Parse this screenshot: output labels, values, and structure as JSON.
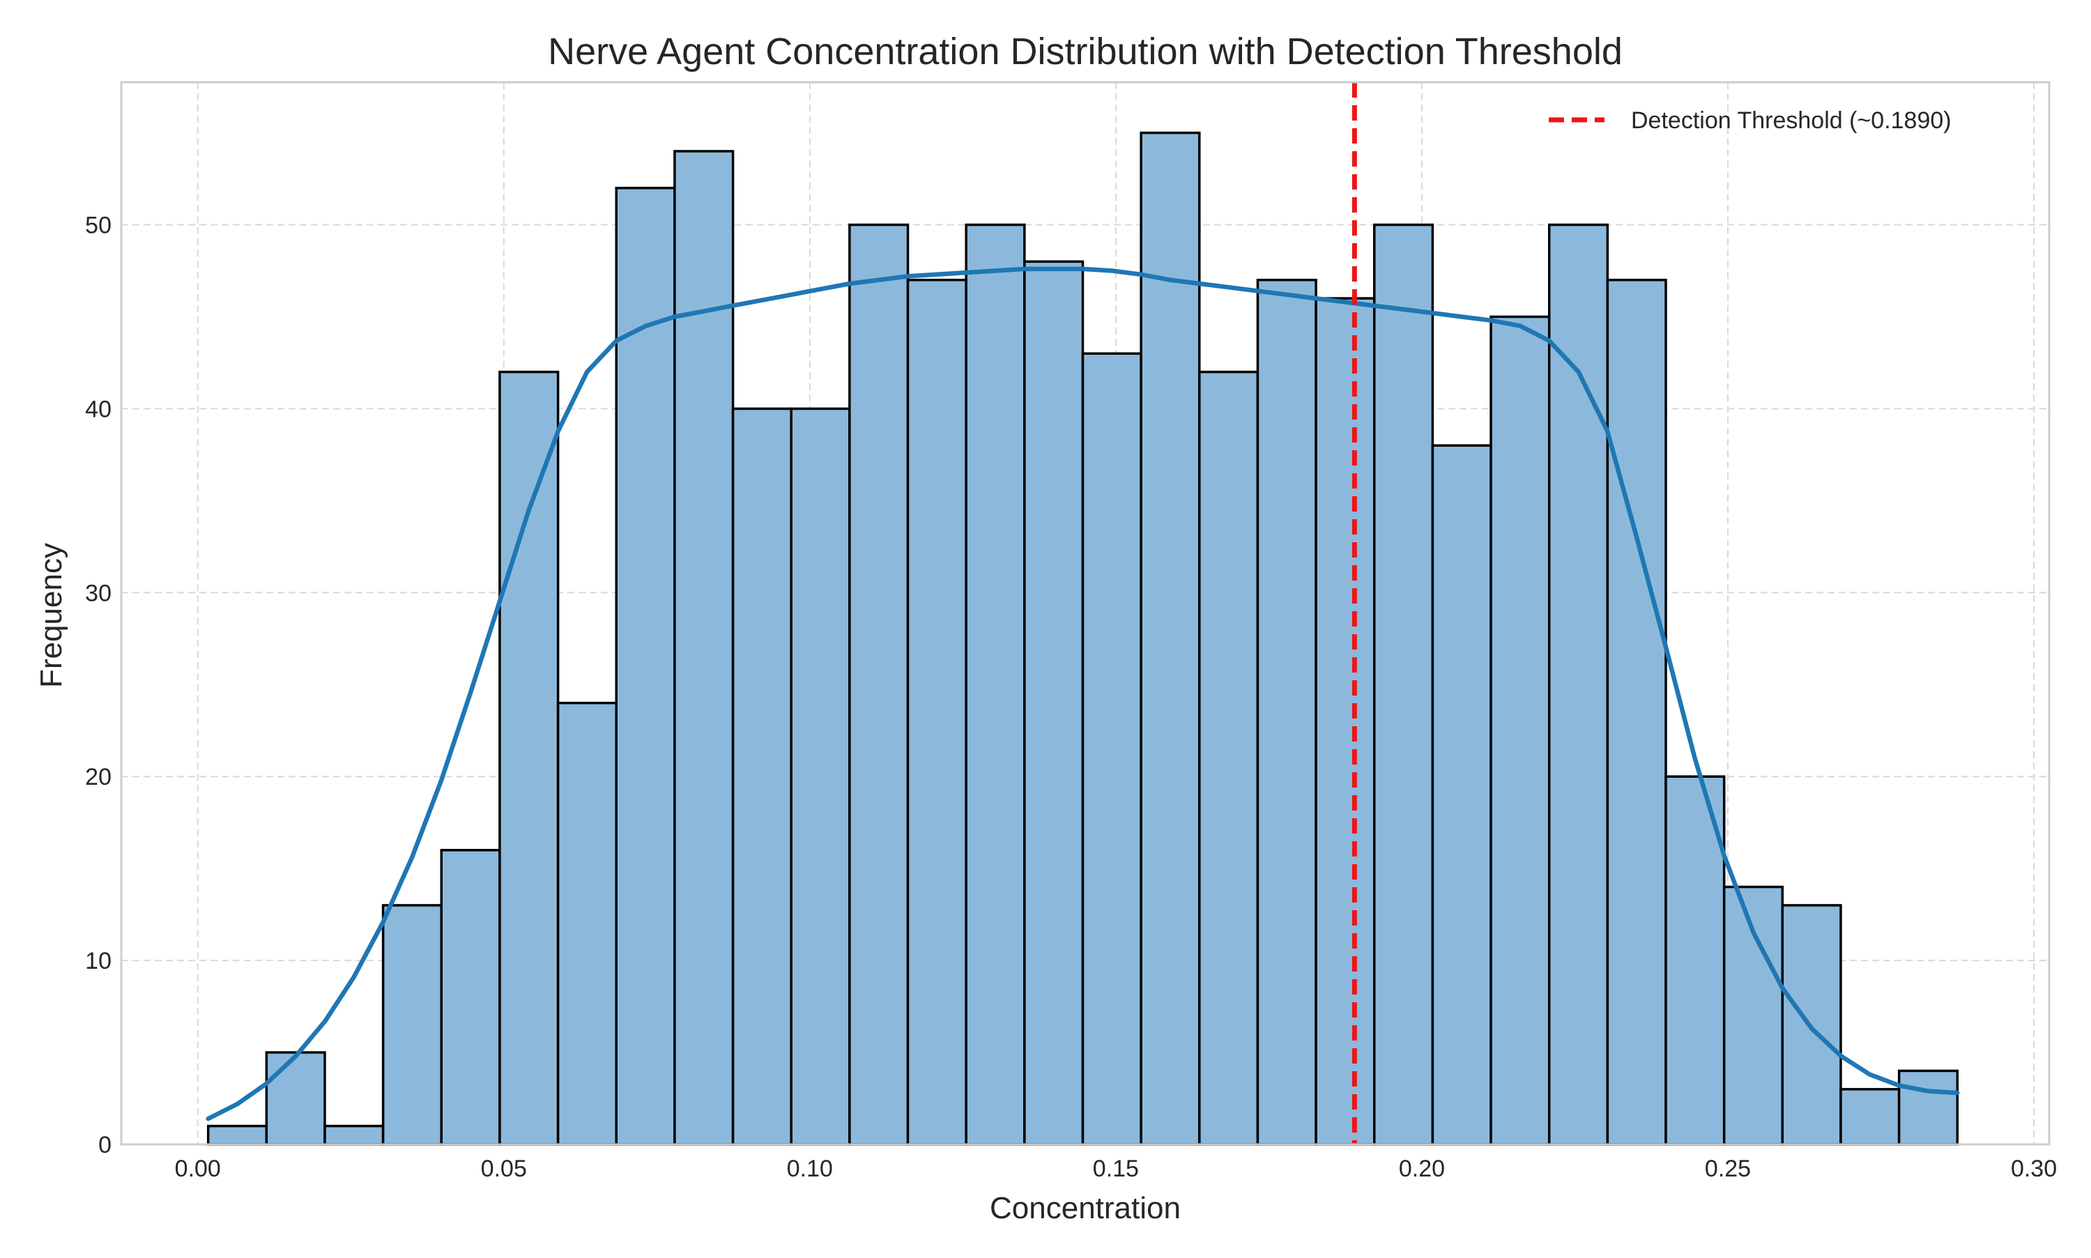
{
  "chart_data": {
    "type": "bar",
    "subtype": "histogram",
    "title": "Nerve Agent Concentration Distribution with Detection Threshold",
    "xlabel": "Concentration",
    "ylabel": "Frequency",
    "xlim": [
      -0.0125,
      0.3025
    ],
    "ylim": [
      0,
      57.75
    ],
    "xticks": [
      0.0,
      0.05,
      0.1,
      0.15,
      0.2,
      0.25,
      0.3
    ],
    "xtick_labels": [
      "0.00",
      "0.05",
      "0.10",
      "0.15",
      "0.20",
      "0.25",
      "0.30"
    ],
    "yticks": [
      0,
      10,
      20,
      30,
      40,
      50
    ],
    "ytick_labels": [
      "0",
      "10",
      "20",
      "30",
      "40",
      "50"
    ],
    "grid": true,
    "legend_position": "top-right",
    "bins": {
      "start": 0.0017,
      "end": 0.2875,
      "counts": [
        1,
        5,
        1,
        13,
        16,
        42,
        24,
        52,
        54,
        40,
        40,
        50,
        47,
        50,
        48,
        43,
        55,
        42,
        47,
        46,
        50,
        38,
        45,
        50,
        47,
        20,
        14,
        13,
        3,
        4
      ]
    },
    "kde": {
      "x": [
        0.0017,
        0.0065,
        0.0112,
        0.016,
        0.0208,
        0.0255,
        0.0303,
        0.035,
        0.0398,
        0.0446,
        0.0493,
        0.0541,
        0.0589,
        0.0636,
        0.0684,
        0.0732,
        0.0779,
        0.0827,
        0.0874,
        0.0922,
        0.097,
        0.1017,
        0.1065,
        0.1113,
        0.116,
        0.1208,
        0.1255,
        0.1303,
        0.1351,
        0.1398,
        0.1446,
        0.1494,
        0.1541,
        0.1589,
        0.1637,
        0.1684,
        0.1732,
        0.1779,
        0.1827,
        0.1875,
        0.1922,
        0.197,
        0.2018,
        0.2065,
        0.2113,
        0.2161,
        0.2208,
        0.2256,
        0.2303,
        0.2351,
        0.2399,
        0.2446,
        0.2494,
        0.2542,
        0.2589,
        0.2637,
        0.2685,
        0.2732,
        0.278,
        0.2827,
        0.2875
      ],
      "y": [
        1.4,
        2.2,
        3.3,
        4.8,
        6.7,
        9.1,
        12.1,
        15.6,
        19.8,
        24.6,
        29.5,
        34.5,
        38.8,
        42.0,
        43.7,
        44.5,
        45.0,
        45.3,
        45.6,
        45.9,
        46.2,
        46.5,
        46.8,
        47.0,
        47.2,
        47.3,
        47.4,
        47.5,
        47.6,
        47.6,
        47.6,
        47.5,
        47.3,
        47.0,
        46.8,
        46.6,
        46.4,
        46.2,
        46.0,
        45.8,
        45.6,
        45.4,
        45.2,
        45.0,
        44.8,
        44.5,
        43.7,
        42.0,
        38.8,
        33.0,
        27.0,
        21.0,
        15.7,
        11.5,
        8.5,
        6.3,
        4.8,
        3.8,
        3.2,
        2.9,
        2.8
      ]
    },
    "threshold": {
      "value": 0.189,
      "label": "Detection Threshold (~0.1890)"
    },
    "colors": {
      "bar_fill": "#8cb9db",
      "bar_edge": "#000000",
      "kde_line": "#1f77b4",
      "threshold_line": "#f01515",
      "grid": "#d9d9d9",
      "frame": "#cccccc",
      "text": "#262626"
    }
  }
}
